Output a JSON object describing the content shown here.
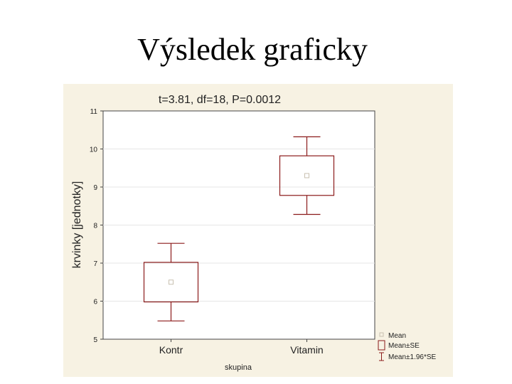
{
  "slide": {
    "title": "Výsledek graficky"
  },
  "chart_data": {
    "type": "boxplot",
    "title": "t=3.81, df=18, P=0.0012",
    "xlabel": "skupina",
    "ylabel": "krvinky [jednotky]",
    "ylim": [
      5,
      11
    ],
    "yticks": [
      5,
      6,
      7,
      8,
      9,
      10,
      11
    ],
    "grid": true,
    "legend_position": "bottom-right",
    "categories": [
      "Kontr",
      "Vitamin"
    ],
    "mean": [
      6.5,
      9.3
    ],
    "mean_minus_se": [
      5.98,
      8.78
    ],
    "mean_plus_se": [
      7.02,
      9.82
    ],
    "mean_minus_1_96_se": [
      5.48,
      8.28
    ],
    "mean_plus_1_96_se": [
      7.52,
      10.32
    ],
    "legend": [
      "Mean",
      "Mean±SE",
      "Mean±1.96*SE"
    ],
    "colors": {
      "background": "#f7f2e3",
      "plot_area": "#ffffff",
      "box": "#8b1a1a",
      "mean_marker": "#c8c0b0",
      "grid": "#e6e6e6",
      "text": "#222222"
    }
  }
}
